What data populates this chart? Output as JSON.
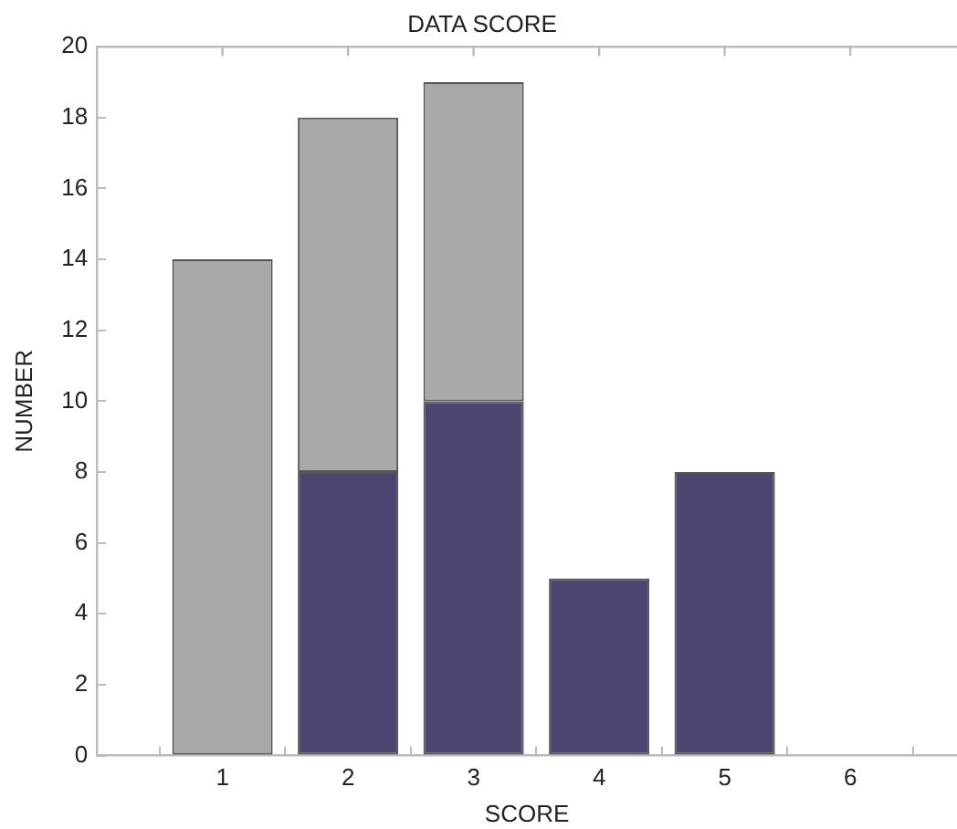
{
  "chart_data": {
    "type": "bar",
    "stacked": true,
    "title": "DATA SCORE",
    "xlabel": "SCORE",
    "ylabel": "NUMBER",
    "x": [
      1,
      2,
      3,
      4,
      5,
      6
    ],
    "series": [
      {
        "color": "#4b4570",
        "values": [
          0,
          8,
          10,
          5,
          8,
          0
        ]
      },
      {
        "color": "#a7a8a8",
        "values": [
          14,
          10,
          9,
          0,
          0,
          0
        ]
      }
    ],
    "xlim": [
      0,
      6.85
    ],
    "xticks": [
      1,
      2,
      3,
      4,
      5,
      6
    ],
    "ylim": [
      0,
      20
    ],
    "yticks": [
      0,
      2,
      4,
      6,
      8,
      10,
      12,
      14,
      16,
      18,
      20
    ],
    "grid": false,
    "legend": false
  }
}
